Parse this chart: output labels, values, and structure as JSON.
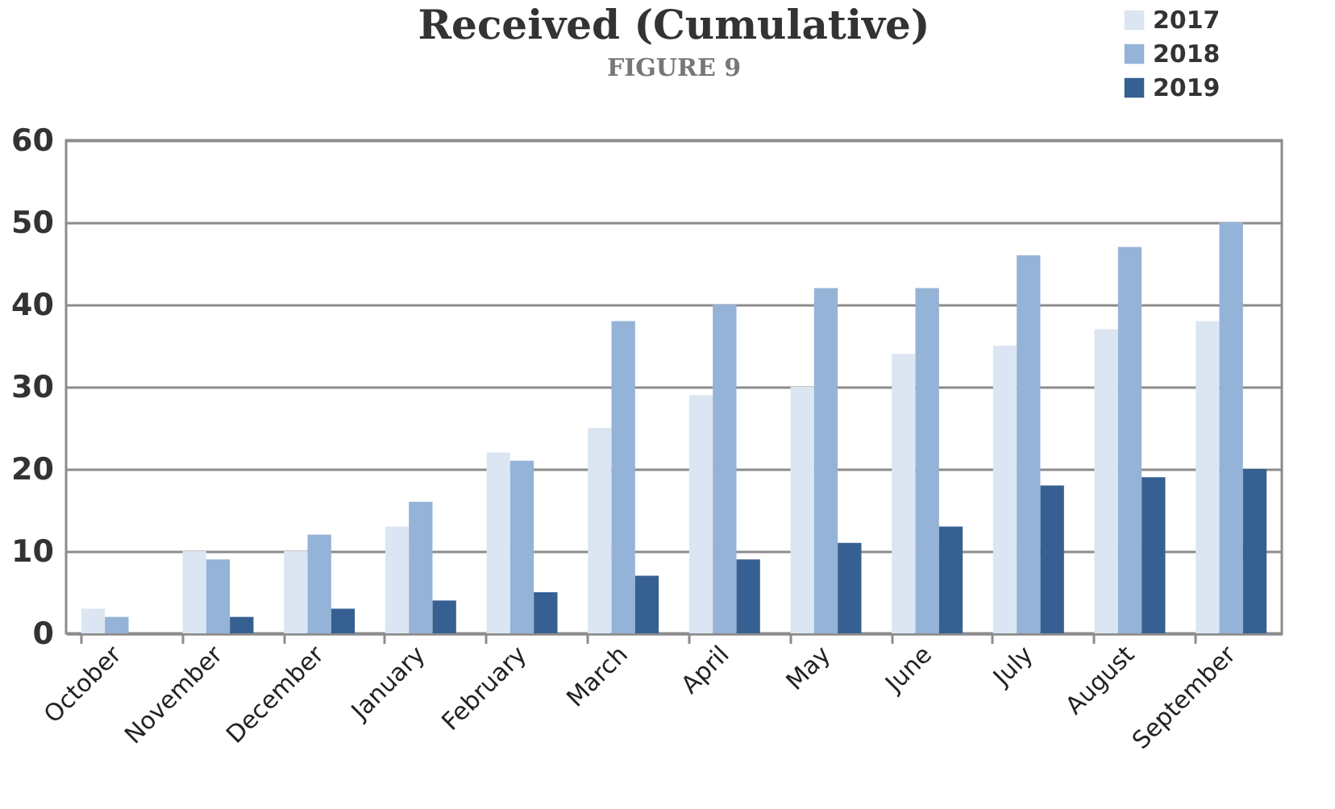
{
  "chart_data": {
    "type": "bar",
    "title": "Received (Cumulative)",
    "subtitle": "FIGURE 9",
    "categories": [
      "October",
      "November",
      "December",
      "January",
      "February",
      "March",
      "April",
      "May",
      "June",
      "July",
      "August",
      "September"
    ],
    "series": [
      {
        "name": "2017",
        "color": "#dce6f2",
        "values": [
          3,
          10,
          10,
          13,
          22,
          25,
          29,
          30,
          34,
          35,
          37,
          38
        ]
      },
      {
        "name": "2018",
        "color": "#95b3d7",
        "values": [
          2,
          9,
          12,
          16,
          21,
          38,
          40,
          42,
          42,
          46,
          47,
          50
        ]
      },
      {
        "name": "2019",
        "color": "#376092",
        "values": [
          null,
          2,
          3,
          4,
          5,
          7,
          9,
          11,
          13,
          18,
          19,
          20
        ]
      }
    ],
    "ylim": [
      0,
      60
    ],
    "yticks": [
      0,
      10,
      20,
      30,
      40,
      50,
      60
    ],
    "grid": "y",
    "legend": "top right"
  }
}
